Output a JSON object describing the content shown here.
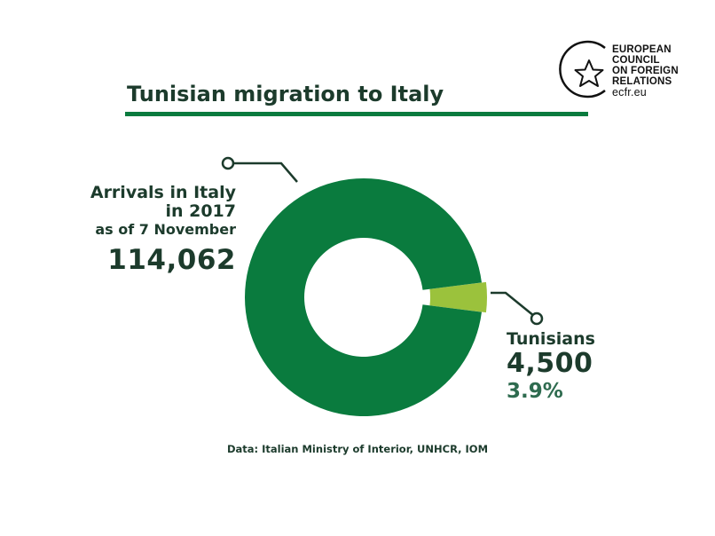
{
  "logo": {
    "lines": [
      "EUROPEAN",
      "COUNCIL",
      "ON FOREIGN",
      "RELATIONS"
    ],
    "url": "ecfr.eu"
  },
  "colors": {
    "brand": "#0a7b3e",
    "highlight": "#9bc23c",
    "text": "#1c3b2c",
    "accent_text": "#2e6b4f"
  },
  "chart_data": {
    "type": "pie",
    "title": "Tunisian migration to Italy",
    "total": {
      "label_lines": [
        "Arrivals in Italy",
        "in 2017",
        "as of 7 November"
      ],
      "value": 114062,
      "value_label": "114,062"
    },
    "slices": [
      {
        "label": "",
        "value": 109562
      },
      {
        "label": "Tunisians",
        "value": 4500,
        "value_label": "4,500",
        "percent_label": "3.9%"
      }
    ],
    "source": "Data: Italian Ministry of Interior, UNHCR, IOM"
  }
}
